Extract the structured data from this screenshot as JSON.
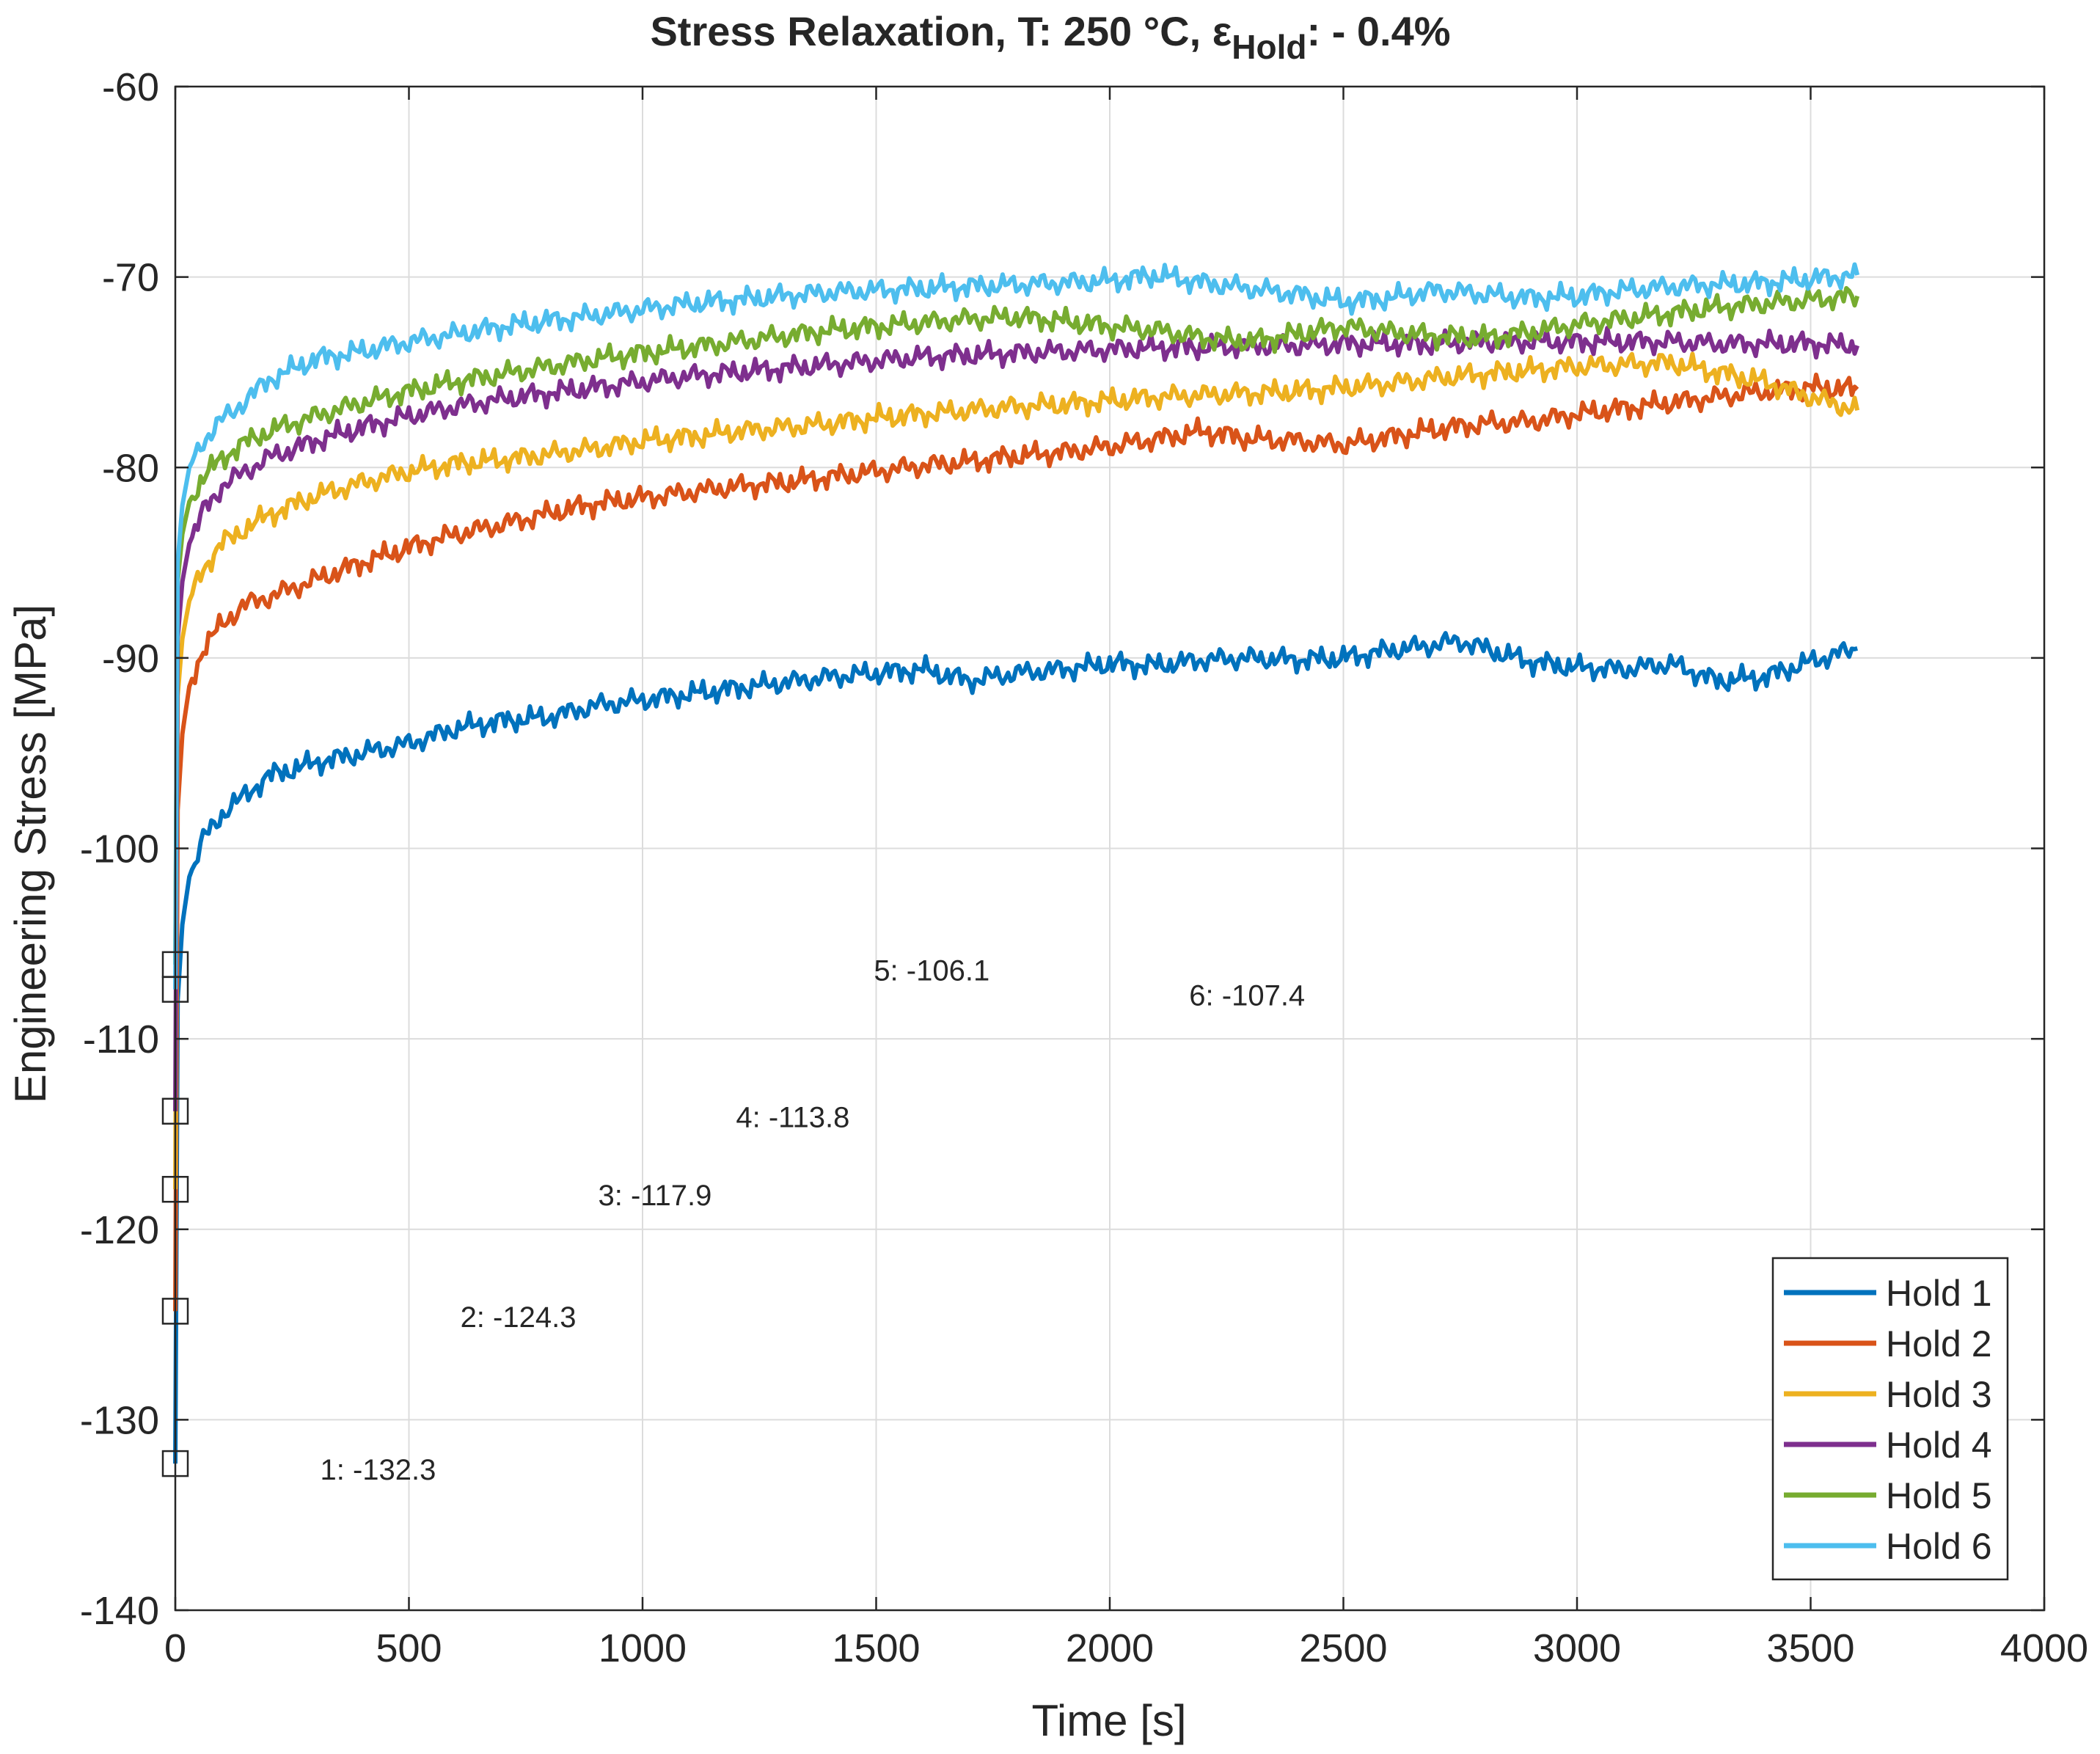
{
  "chart_data": {
    "type": "line",
    "title": "Stress Relaxation, T: 250 °C, ε",
    "title_subscript": "Hold",
    "title_suffix": ": - 0.4%",
    "xlabel": "Time [s]",
    "ylabel": "Engineering Stress [MPa]",
    "xlim": [
      0,
      4000
    ],
    "ylim": [
      -140,
      -60
    ],
    "xticks": [
      0,
      500,
      1000,
      1500,
      2000,
      2500,
      3000,
      3500,
      4000
    ],
    "yticks": [
      -60,
      -70,
      -80,
      -90,
      -100,
      -110,
      -120,
      -130,
      -140
    ],
    "grid": true,
    "legend_position": "bottom-right",
    "series": [
      {
        "name": "Hold 1",
        "color": "#0072BD",
        "start": -132.3,
        "points": [
          [
            5,
            -108
          ],
          [
            15,
            -104
          ],
          [
            30,
            -101.5
          ],
          [
            60,
            -99.5
          ],
          [
            100,
            -98.2
          ],
          [
            150,
            -97.2
          ],
          [
            200,
            -96.2
          ],
          [
            300,
            -95.5
          ],
          [
            400,
            -95
          ],
          [
            500,
            -94.5
          ],
          [
            600,
            -93.7
          ],
          [
            700,
            -93.3
          ],
          [
            800,
            -93.1
          ],
          [
            900,
            -92.5
          ],
          [
            1000,
            -92.2
          ],
          [
            1100,
            -91.9
          ],
          [
            1200,
            -91.6
          ],
          [
            1300,
            -91.3
          ],
          [
            1400,
            -91
          ],
          [
            1500,
            -90.8
          ],
          [
            1600,
            -90.6
          ],
          [
            1700,
            -91.2
          ],
          [
            1800,
            -90.8
          ],
          [
            1900,
            -90.6
          ],
          [
            2000,
            -90.3
          ],
          [
            2100,
            -90.4
          ],
          [
            2200,
            -90.1
          ],
          [
            2300,
            -90
          ],
          [
            2400,
            -90.1
          ],
          [
            2500,
            -90
          ],
          [
            2600,
            -89.6
          ],
          [
            2700,
            -89.3
          ],
          [
            2750,
            -89.1
          ],
          [
            2800,
            -89.5
          ],
          [
            2900,
            -90.2
          ],
          [
            3000,
            -90.5
          ],
          [
            3100,
            -90.6
          ],
          [
            3200,
            -90.3
          ],
          [
            3300,
            -91.2
          ],
          [
            3400,
            -91
          ],
          [
            3500,
            -90.2
          ],
          [
            3600,
            -89.5
          ]
        ]
      },
      {
        "name": "Hold 2",
        "color": "#D95319",
        "start": -124.3,
        "points": [
          [
            5,
            -98
          ],
          [
            15,
            -94
          ],
          [
            30,
            -91.5
          ],
          [
            60,
            -89.5
          ],
          [
            100,
            -88.2
          ],
          [
            150,
            -87.2
          ],
          [
            200,
            -86.8
          ],
          [
            300,
            -85.9
          ],
          [
            400,
            -85
          ],
          [
            500,
            -84.2
          ],
          [
            600,
            -83.5
          ],
          [
            700,
            -83
          ],
          [
            800,
            -82.4
          ],
          [
            900,
            -81.9
          ],
          [
            1000,
            -81.6
          ],
          [
            1100,
            -81.3
          ],
          [
            1200,
            -81
          ],
          [
            1300,
            -80.8
          ],
          [
            1400,
            -80.5
          ],
          [
            1500,
            -80.2
          ],
          [
            1600,
            -79.9
          ],
          [
            1700,
            -79.7
          ],
          [
            1800,
            -79.4
          ],
          [
            1900,
            -79.2
          ],
          [
            2000,
            -78.9
          ],
          [
            2100,
            -78.5
          ],
          [
            2200,
            -78.1
          ],
          [
            2300,
            -78.5
          ],
          [
            2400,
            -78.6
          ],
          [
            2500,
            -78.8
          ],
          [
            2600,
            -78.4
          ],
          [
            2700,
            -78
          ],
          [
            2800,
            -77.7
          ],
          [
            2900,
            -77.6
          ],
          [
            3000,
            -77.2
          ],
          [
            3100,
            -76.9
          ],
          [
            3200,
            -76.6
          ],
          [
            3300,
            -76.3
          ],
          [
            3400,
            -76
          ],
          [
            3500,
            -75.8
          ],
          [
            3600,
            -75.9
          ]
        ]
      },
      {
        "name": "Hold 3",
        "color": "#EDB120",
        "start": -117.9,
        "points": [
          [
            5,
            -92
          ],
          [
            15,
            -89
          ],
          [
            30,
            -87
          ],
          [
            60,
            -85.3
          ],
          [
            100,
            -84
          ],
          [
            150,
            -83.2
          ],
          [
            200,
            -82.5
          ],
          [
            300,
            -81.5
          ],
          [
            400,
            -80.8
          ],
          [
            500,
            -80.2
          ],
          [
            600,
            -79.8
          ],
          [
            700,
            -79.6
          ],
          [
            800,
            -79.3
          ],
          [
            900,
            -79
          ],
          [
            1000,
            -78.6
          ],
          [
            1100,
            -78.4
          ],
          [
            1200,
            -78.1
          ],
          [
            1300,
            -77.9
          ],
          [
            1400,
            -77.7
          ],
          [
            1500,
            -77.4
          ],
          [
            1600,
            -77.2
          ],
          [
            1700,
            -77
          ],
          [
            1800,
            -76.8
          ],
          [
            1900,
            -76.7
          ],
          [
            2000,
            -76.5
          ],
          [
            2100,
            -76.3
          ],
          [
            2200,
            -76.2
          ],
          [
            2300,
            -76.1
          ],
          [
            2400,
            -76
          ],
          [
            2500,
            -75.8
          ],
          [
            2600,
            -75.6
          ],
          [
            2700,
            -75.3
          ],
          [
            2800,
            -75.1
          ],
          [
            2900,
            -74.9
          ],
          [
            3000,
            -74.7
          ],
          [
            3100,
            -74.6
          ],
          [
            3200,
            -74.5
          ],
          [
            3300,
            -75
          ],
          [
            3400,
            -75.5
          ],
          [
            3500,
            -76.3
          ],
          [
            3600,
            -77
          ]
        ]
      },
      {
        "name": "Hold 4",
        "color": "#7E2F8E",
        "start": -113.8,
        "points": [
          [
            5,
            -89
          ],
          [
            15,
            -86
          ],
          [
            30,
            -84
          ],
          [
            60,
            -82.3
          ],
          [
            100,
            -81
          ],
          [
            150,
            -80.2
          ],
          [
            200,
            -79.5
          ],
          [
            300,
            -78.6
          ],
          [
            400,
            -77.9
          ],
          [
            500,
            -77.3
          ],
          [
            600,
            -76.8
          ],
          [
            700,
            -76.4
          ],
          [
            800,
            -76.1
          ],
          [
            900,
            -75.8
          ],
          [
            1000,
            -75.5
          ],
          [
            1100,
            -75.2
          ],
          [
            1200,
            -75
          ],
          [
            1300,
            -74.8
          ],
          [
            1400,
            -74.6
          ],
          [
            1500,
            -74.4
          ],
          [
            1600,
            -74.2
          ],
          [
            1700,
            -74.1
          ],
          [
            1800,
            -74
          ],
          [
            1900,
            -73.9
          ],
          [
            2000,
            -73.8
          ],
          [
            2100,
            -73.7
          ],
          [
            2200,
            -73.7
          ],
          [
            2300,
            -73.6
          ],
          [
            2400,
            -73.6
          ],
          [
            2500,
            -73.5
          ],
          [
            2600,
            -73.5
          ],
          [
            2700,
            -73.5
          ],
          [
            2800,
            -73.4
          ],
          [
            2900,
            -73.4
          ],
          [
            3000,
            -73.4
          ],
          [
            3100,
            -73.4
          ],
          [
            3200,
            -73.4
          ],
          [
            3300,
            -73.5
          ],
          [
            3400,
            -73.5
          ],
          [
            3500,
            -73.5
          ],
          [
            3600,
            -73.6
          ]
        ]
      },
      {
        "name": "Hold 5",
        "color": "#77AC30",
        "start": -106.1,
        "points": [
          [
            5,
            -86
          ],
          [
            15,
            -83.5
          ],
          [
            30,
            -81.8
          ],
          [
            60,
            -80.5
          ],
          [
            100,
            -79.5
          ],
          [
            150,
            -78.7
          ],
          [
            200,
            -78.1
          ],
          [
            300,
            -77.3
          ],
          [
            400,
            -76.6
          ],
          [
            500,
            -76
          ],
          [
            600,
            -75.5
          ],
          [
            700,
            -75.1
          ],
          [
            800,
            -74.7
          ],
          [
            900,
            -74.3
          ],
          [
            1000,
            -74
          ],
          [
            1100,
            -73.7
          ],
          [
            1200,
            -73.4
          ],
          [
            1300,
            -73.1
          ],
          [
            1400,
            -72.8
          ],
          [
            1500,
            -72.6
          ],
          [
            1600,
            -72.4
          ],
          [
            1700,
            -72.2
          ],
          [
            1800,
            -72.1
          ],
          [
            1900,
            -72.3
          ],
          [
            2000,
            -72.6
          ],
          [
            2100,
            -72.8
          ],
          [
            2200,
            -73.2
          ],
          [
            2300,
            -73.4
          ],
          [
            2400,
            -73
          ],
          [
            2500,
            -72.6
          ],
          [
            2600,
            -72.9
          ],
          [
            2700,
            -73.1
          ],
          [
            2800,
            -73.2
          ],
          [
            2900,
            -72.9
          ],
          [
            3000,
            -72.5
          ],
          [
            3100,
            -72.2
          ],
          [
            3200,
            -71.9
          ],
          [
            3300,
            -71.6
          ],
          [
            3400,
            -71.4
          ],
          [
            3500,
            -71.2
          ],
          [
            3600,
            -71
          ]
        ]
      },
      {
        "name": "Hold 6",
        "color": "#4DBEEE",
        "start": -107.4,
        "points": [
          [
            5,
            -85
          ],
          [
            15,
            -82
          ],
          [
            30,
            -80
          ],
          [
            60,
            -78.6
          ],
          [
            100,
            -77.5
          ],
          [
            150,
            -76.5
          ],
          [
            200,
            -75.4
          ],
          [
            300,
            -74.3
          ],
          [
            400,
            -73.9
          ],
          [
            500,
            -73.4
          ],
          [
            600,
            -73
          ],
          [
            700,
            -72.6
          ],
          [
            800,
            -72.3
          ],
          [
            900,
            -72
          ],
          [
            1000,
            -71.7
          ],
          [
            1100,
            -71.4
          ],
          [
            1200,
            -71.2
          ],
          [
            1300,
            -71
          ],
          [
            1400,
            -70.8
          ],
          [
            1500,
            -70.7
          ],
          [
            1600,
            -70.6
          ],
          [
            1700,
            -70.5
          ],
          [
            1800,
            -70.4
          ],
          [
            1900,
            -70.3
          ],
          [
            2000,
            -70.2
          ],
          [
            2100,
            -69.9
          ],
          [
            2200,
            -70.3
          ],
          [
            2300,
            -70.6
          ],
          [
            2400,
            -70.9
          ],
          [
            2500,
            -71.3
          ],
          [
            2600,
            -71.1
          ],
          [
            2700,
            -70.7
          ],
          [
            2800,
            -70.9
          ],
          [
            2900,
            -71.1
          ],
          [
            3000,
            -71
          ],
          [
            3100,
            -70.7
          ],
          [
            3200,
            -70.5
          ],
          [
            3300,
            -70.4
          ],
          [
            3400,
            -70.3
          ],
          [
            3500,
            -70.1
          ],
          [
            3600,
            -69.9
          ]
        ]
      }
    ],
    "annotations": [
      {
        "text": "1: -132.3",
        "x": 310,
        "y": -132.6
      },
      {
        "text": "2: -124.3",
        "x": 610,
        "y": -124.6
      },
      {
        "text": "3: -117.9",
        "x": 905,
        "y": -118.2
      },
      {
        "text": "4: -113.8",
        "x": 1200,
        "y": -114.1
      },
      {
        "text": "5: -106.1",
        "x": 1495,
        "y": -106.4
      },
      {
        "text": "6: -107.4",
        "x": 2170,
        "y": -107.7
      }
    ]
  }
}
